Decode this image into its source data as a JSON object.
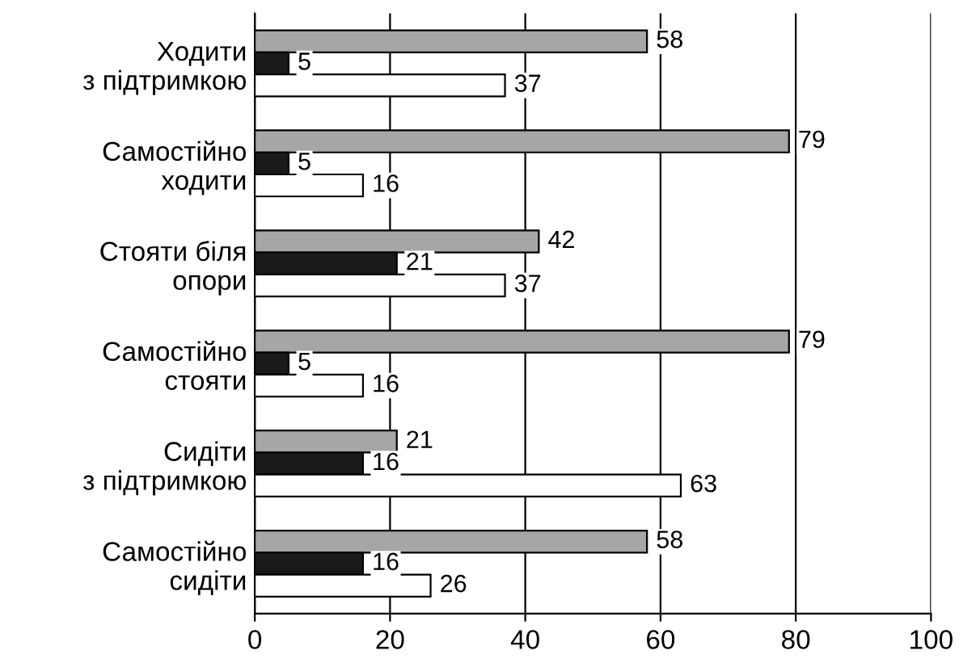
{
  "chart_data": {
    "type": "bar",
    "orientation": "horizontal",
    "categories": [
      "Ходити\nз підтримкою",
      "Самостійно\nходити",
      "Стояти біля\nопори",
      "Самостійно\nстояти",
      "Сидіти\nз підтримкою",
      "Самостійно\nсидіти"
    ],
    "series": [
      {
        "color": "#a6a6a6",
        "values": [
          58,
          79,
          42,
          79,
          21,
          58
        ]
      },
      {
        "color": "#1a1a1a",
        "values": [
          5,
          5,
          21,
          5,
          16,
          16
        ]
      },
      {
        "color": "#ffffff",
        "values": [
          37,
          16,
          37,
          16,
          63,
          26
        ]
      }
    ],
    "xlim": [
      0,
      100
    ],
    "xticks": [
      0,
      20,
      40,
      60,
      80,
      100
    ],
    "grid": "x",
    "data_labels": true
  }
}
